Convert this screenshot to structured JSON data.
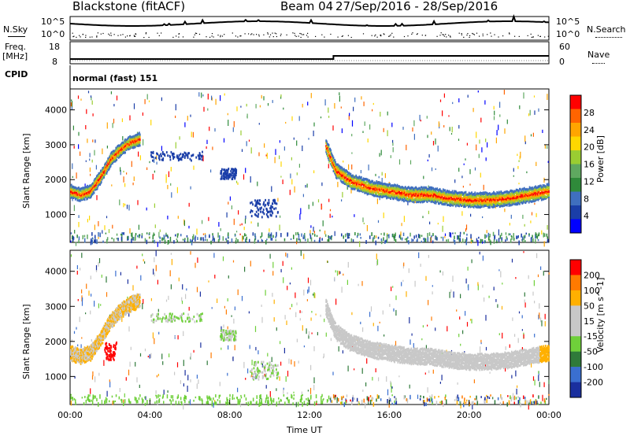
{
  "header": {
    "station": "Blackstone (fitACF)",
    "beam": "Beam 04",
    "dates": "27/Sep/2016 - 28/Sep/2016"
  },
  "top_panels": {
    "nsky_label": "N.Sky",
    "nsearch_label": "N.Search",
    "nsky_ticks": [
      "10^5",
      "10^0"
    ],
    "nsearch_ticks": [
      "10^5",
      "10^0"
    ],
    "freq_label": "Freq.",
    "freq_unit": "[MHz]",
    "freq_ticks": [
      "18",
      "8"
    ],
    "nave_label": "Nave",
    "nave_ticks": [
      "60",
      "0"
    ],
    "cpid_label": "CPID",
    "cpid_value": "normal (fast) 151"
  },
  "chart_data": [
    {
      "type": "heatmap",
      "name": "power",
      "ylabel": "Slant Range [km]",
      "yticks": [
        1000,
        2000,
        3000,
        4000
      ],
      "ylim": [
        200,
        4600
      ],
      "colorbar_label": "Power [dB]",
      "colorbar_ticks": [
        "28",
        "24",
        "20",
        "16",
        "12",
        "8",
        "4"
      ],
      "colors": [
        "#0000ff",
        "#1a3ea8",
        "#3f6fbf",
        "#2f8a3a",
        "#5fa860",
        "#9acd32",
        "#ffd700",
        "#ffa500",
        "#ff6400",
        "#ff0000"
      ]
    },
    {
      "type": "heatmap",
      "name": "velocity",
      "ylabel": "Slant Range [km]",
      "yticks": [
        1000,
        2000,
        3000,
        4000
      ],
      "ylim": [
        200,
        4600
      ],
      "colorbar_label": "Velocity [m s^-1]",
      "colorbar_ticks": [
        "200",
        "100",
        "50",
        "15",
        "-15",
        "-50",
        "-100",
        "-200"
      ],
      "colors": [
        "#1a2f9e",
        "#3a6fd0",
        "#2f7a3a",
        "#6fd03a",
        "#c8c8c8",
        "#c8c8c8",
        "#ffb000",
        "#ff7a00",
        "#ff0000"
      ]
    }
  ],
  "xaxis": {
    "label": "Time UT",
    "ticks": [
      "00:00",
      "04:00",
      "08:00",
      "12:00",
      "16:00",
      "20:00",
      "00:00"
    ]
  }
}
